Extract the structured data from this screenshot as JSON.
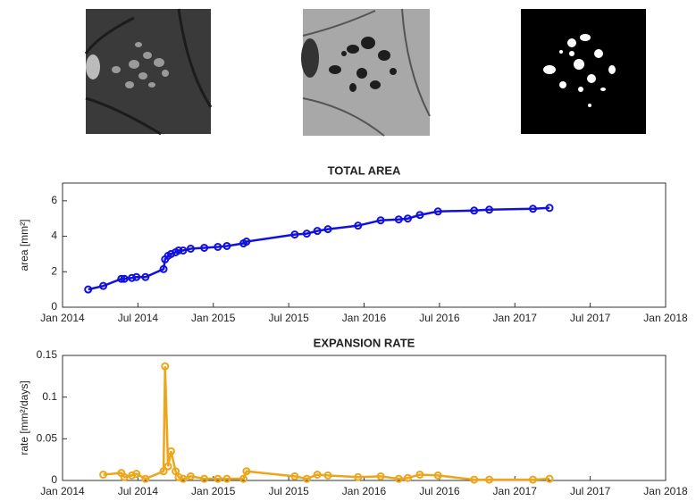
{
  "chart_data": [
    {
      "type": "line",
      "title": "TOTAL AREA",
      "ylabel": "area [mm²]",
      "color": "#1010e0",
      "x": [
        2014.17,
        2014.27,
        2014.39,
        2014.41,
        2014.46,
        2014.49,
        2014.55,
        2014.67,
        2014.68,
        2014.7,
        2014.72,
        2014.75,
        2014.77,
        2014.8,
        2014.85,
        2014.94,
        2015.03,
        2015.09,
        2015.2,
        2015.22,
        2015.54,
        2015.62,
        2015.69,
        2015.76,
        2015.96,
        2016.11,
        2016.23,
        2016.29,
        2016.37,
        2016.49,
        2016.73,
        2016.83,
        2017.12,
        2017.23
      ],
      "values": [
        1.0,
        1.2,
        1.6,
        1.6,
        1.65,
        1.7,
        1.7,
        2.15,
        2.7,
        2.9,
        3.0,
        3.1,
        3.2,
        3.2,
        3.3,
        3.35,
        3.4,
        3.45,
        3.6,
        3.7,
        4.1,
        4.15,
        4.3,
        4.4,
        4.6,
        4.9,
        4.95,
        5.0,
        5.2,
        5.4,
        5.45,
        5.5,
        5.55,
        5.6
      ],
      "xlim": [
        2014,
        2018
      ],
      "xticks": [
        {
          "value": 2014,
          "label": "Jan 2014"
        },
        {
          "value": 2014.5,
          "label": "Jul 2014"
        },
        {
          "value": 2015,
          "label": "Jan 2015"
        },
        {
          "value": 2015.5,
          "label": "Jul 2015"
        },
        {
          "value": 2016,
          "label": "Jan 2016"
        },
        {
          "value": 2016.5,
          "label": "Jul 2016"
        },
        {
          "value": 2017,
          "label": "Jan 2017"
        },
        {
          "value": 2017.5,
          "label": "Jul 2017"
        },
        {
          "value": 2018,
          "label": "Jan 2018"
        }
      ],
      "ylim": [
        0,
        7
      ],
      "yticks": [
        0,
        2,
        4,
        6
      ]
    },
    {
      "type": "line",
      "title": "EXPANSION RATE",
      "ylabel": "rate [mm²/days]",
      "color": "#eda51a",
      "x": [
        2014.27,
        2014.39,
        2014.41,
        2014.46,
        2014.49,
        2014.55,
        2014.67,
        2014.68,
        2014.7,
        2014.72,
        2014.75,
        2014.77,
        2014.8,
        2014.85,
        2014.94,
        2015.03,
        2015.09,
        2015.2,
        2015.22,
        2015.54,
        2015.62,
        2015.69,
        2015.76,
        2015.96,
        2016.11,
        2016.23,
        2016.29,
        2016.37,
        2016.49,
        2016.73,
        2016.83,
        2017.12,
        2017.23
      ],
      "values": [
        0.007,
        0.009,
        0.004,
        0.006,
        0.008,
        0.002,
        0.011,
        0.137,
        0.017,
        0.035,
        0.011,
        0.004,
        0.002,
        0.005,
        0.002,
        0.002,
        0.002,
        0.002,
        0.011,
        0.005,
        0.002,
        0.007,
        0.006,
        0.004,
        0.005,
        0.002,
        0.003,
        0.007,
        0.006,
        0.001,
        0.001,
        0.001,
        0.002
      ],
      "xlim": [
        2014,
        2018
      ],
      "xticks": [
        {
          "value": 2014,
          "label": "Jan 2014"
        },
        {
          "value": 2014.5,
          "label": "Jul 2014"
        },
        {
          "value": 2015,
          "label": "Jan 2015"
        },
        {
          "value": 2015.5,
          "label": "Jul 2015"
        },
        {
          "value": 2016,
          "label": "Jan 2016"
        },
        {
          "value": 2016.5,
          "label": "Jul 2016"
        },
        {
          "value": 2017,
          "label": "Jan 2017"
        },
        {
          "value": 2017.5,
          "label": "Jul 2017"
        },
        {
          "value": 2018,
          "label": "Jan 2018"
        }
      ],
      "ylim": [
        0,
        0.15
      ],
      "yticks": [
        0,
        0.05,
        0.1,
        0.15
      ]
    }
  ]
}
